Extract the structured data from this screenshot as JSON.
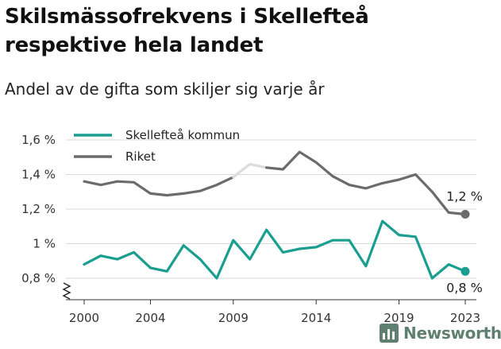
{
  "header": {
    "title": "Skilsmässofrekvens i Skellefteå respektive hela landet",
    "subtitle": "Andel av de gifta som skiljer sig varje år"
  },
  "brand": {
    "name": "Newsworthy",
    "icon": "newsworthy-logo-icon",
    "color": "#5f7f73"
  },
  "chart_data": {
    "type": "line",
    "x": [
      2000,
      2001,
      2002,
      2003,
      2004,
      2005,
      2006,
      2007,
      2008,
      2009,
      2010,
      2011,
      2012,
      2013,
      2014,
      2015,
      2016,
      2017,
      2018,
      2019,
      2020,
      2021,
      2022,
      2023
    ],
    "x_ticks": [
      2000,
      2004,
      2009,
      2014,
      2019,
      2023
    ],
    "y_ticks": [
      {
        "value": 0.8,
        "label": "0,8 %"
      },
      {
        "value": 1.0,
        "label": "1 %"
      },
      {
        "value": 1.2,
        "label": "1,2 %"
      },
      {
        "value": 1.4,
        "label": "1,4 %"
      },
      {
        "value": 1.6,
        "label": "1,6 %"
      }
    ],
    "ylim": [
      0.8,
      1.6
    ],
    "axis_break": true,
    "grid": "horizontal",
    "legend_position": "top-left",
    "series": [
      {
        "name": "Skellefteå kommun",
        "color": "#1a9e8f",
        "values": [
          0.88,
          0.93,
          0.91,
          0.95,
          0.86,
          0.84,
          0.99,
          0.91,
          0.8,
          1.02,
          0.91,
          1.08,
          0.95,
          0.97,
          0.98,
          1.02,
          1.02,
          0.87,
          1.13,
          1.05,
          1.04,
          0.8,
          0.88,
          0.84
        ],
        "end_label": "0,8 %"
      },
      {
        "name": "Riket",
        "color": "#6b6b6b",
        "values": [
          1.36,
          1.34,
          1.36,
          1.355,
          1.29,
          1.28,
          1.29,
          1.305,
          1.34,
          1.385,
          1.46,
          1.44,
          1.43,
          1.53,
          1.47,
          1.39,
          1.34,
          1.32,
          1.35,
          1.37,
          1.4,
          1.3,
          1.18,
          1.17
        ],
        "end_label": "1,2 %",
        "highlight_range": [
          2009,
          2011
        ],
        "highlight_color": "#dcdcdc"
      }
    ]
  }
}
